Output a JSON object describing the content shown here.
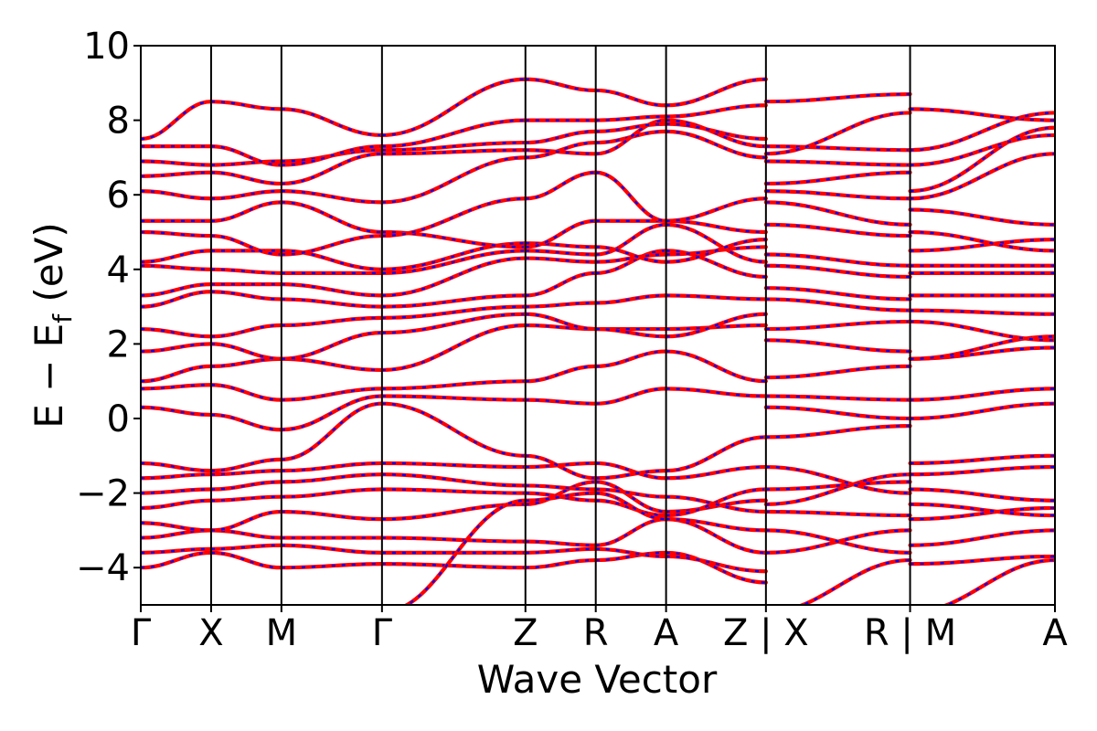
{
  "chart_data": {
    "type": "line",
    "title": "",
    "xlabel": "Wave Vector",
    "ylabel": {
      "prefix": "E − E",
      "subscript": "f",
      "suffix": " (eV)"
    },
    "ylim": [
      -5,
      10
    ],
    "yticks": [
      -4,
      -2,
      0,
      2,
      4,
      6,
      8,
      10
    ],
    "ytick_labels": [
      "−4",
      "−2",
      "0",
      "2",
      "4",
      "6",
      "8",
      "10"
    ],
    "xlim": [
      0,
      13
    ],
    "kpoint_positions": [
      0,
      1,
      2,
      3.43,
      5.47,
      6.47,
      7.47,
      8.89,
      10.94,
      13
    ],
    "kpoint_labels": [
      "Γ",
      "X",
      "M",
      "Γ",
      "Z",
      "R",
      "A",
      "Z | X",
      "R | M",
      "A"
    ],
    "grid": false,
    "series_style": [
      {
        "color": "#ff0000",
        "linestyle": "solid"
      },
      {
        "color": "#0000ff",
        "linestyle": "dotted"
      }
    ],
    "segments": [
      {
        "x_start": 0,
        "x_end": 1,
        "bands": [
          [
            -4.0,
            -3.6
          ],
          [
            -3.6,
            -3.5
          ],
          [
            -3.2,
            -3.0
          ],
          [
            -2.8,
            -3.0
          ],
          [
            -2.4,
            -2.2
          ],
          [
            -2.0,
            -1.9
          ],
          [
            -1.6,
            -1.5
          ],
          [
            -1.2,
            -1.4
          ],
          [
            0.3,
            0.1
          ],
          [
            0.8,
            0.9
          ],
          [
            1.0,
            1.4
          ],
          [
            1.8,
            2.0
          ],
          [
            2.4,
            2.2
          ],
          [
            3.0,
            3.4
          ],
          [
            3.3,
            3.6
          ],
          [
            4.1,
            4.0
          ],
          [
            4.2,
            4.5
          ],
          [
            5.3,
            5.3
          ],
          [
            5.0,
            4.9
          ],
          [
            6.1,
            5.9
          ],
          [
            6.5,
            6.6
          ],
          [
            6.9,
            6.8
          ],
          [
            7.3,
            7.3
          ],
          [
            7.5,
            8.5
          ]
        ]
      },
      {
        "x_start": 1,
        "x_end": 2,
        "bands": [
          [
            -3.6,
            -4.0
          ],
          [
            -3.5,
            -3.4
          ],
          [
            -3.0,
            -3.2
          ],
          [
            -3.0,
            -2.5
          ],
          [
            -2.2,
            -2.1
          ],
          [
            -1.9,
            -1.7
          ],
          [
            -1.5,
            -1.4
          ],
          [
            -1.4,
            -1.1
          ],
          [
            0.1,
            -0.3
          ],
          [
            0.9,
            0.5
          ],
          [
            1.4,
            1.6
          ],
          [
            2.0,
            1.6
          ],
          [
            2.2,
            2.5
          ],
          [
            3.4,
            3.2
          ],
          [
            3.6,
            3.6
          ],
          [
            4.0,
            3.9
          ],
          [
            4.5,
            4.5
          ],
          [
            5.3,
            5.8
          ],
          [
            4.9,
            4.4
          ],
          [
            5.9,
            6.1
          ],
          [
            6.6,
            6.3
          ],
          [
            6.8,
            6.9
          ],
          [
            7.3,
            6.8
          ],
          [
            8.5,
            8.3
          ]
        ]
      },
      {
        "x_start": 2,
        "x_end": 3.43,
        "bands": [
          [
            -4.0,
            -3.9
          ],
          [
            -3.4,
            -3.6
          ],
          [
            -3.2,
            -3.2
          ],
          [
            -2.5,
            -2.7
          ],
          [
            -2.1,
            -1.9
          ],
          [
            -1.7,
            -1.5
          ],
          [
            -1.4,
            -1.2
          ],
          [
            -1.1,
            0.4
          ],
          [
            -0.3,
            0.6
          ],
          [
            0.5,
            0.8
          ],
          [
            1.6,
            1.3
          ],
          [
            1.6,
            2.3
          ],
          [
            2.5,
            2.7
          ],
          [
            3.2,
            3.0
          ],
          [
            3.6,
            3.3
          ],
          [
            3.9,
            3.9
          ],
          [
            4.5,
            4.0
          ],
          [
            5.8,
            5.0
          ],
          [
            4.4,
            4.9
          ],
          [
            6.1,
            5.8
          ],
          [
            6.3,
            7.1
          ],
          [
            6.9,
            7.2
          ],
          [
            6.8,
            7.3
          ],
          [
            8.3,
            7.6
          ]
        ]
      },
      {
        "x_start": 3.43,
        "x_end": 5.47,
        "bands": [
          [
            -3.9,
            -4.0
          ],
          [
            -3.6,
            -3.6
          ],
          [
            -3.2,
            -3.3
          ],
          [
            -2.7,
            -2.3
          ],
          [
            -1.9,
            -2.0
          ],
          [
            -1.5,
            -1.8
          ],
          [
            -1.2,
            -1.3
          ],
          [
            0.4,
            -1.0
          ],
          [
            0.6,
            0.5
          ],
          [
            0.8,
            1.0
          ],
          [
            1.3,
            2.5
          ],
          [
            2.3,
            2.8
          ],
          [
            2.7,
            3.0
          ],
          [
            3.0,
            3.3
          ],
          [
            3.3,
            4.3
          ],
          [
            3.9,
            4.5
          ],
          [
            4.0,
            4.7
          ],
          [
            5.0,
            4.6
          ],
          [
            4.9,
            5.9
          ],
          [
            5.8,
            7.0
          ],
          [
            7.1,
            7.2
          ],
          [
            7.2,
            7.4
          ],
          [
            7.3,
            8.0
          ],
          [
            7.6,
            9.1
          ],
          [
            -5.2,
            -2.2
          ]
        ]
      },
      {
        "x_start": 5.47,
        "x_end": 6.47,
        "bands": [
          [
            -4.0,
            -3.8
          ],
          [
            -3.6,
            -3.5
          ],
          [
            -3.3,
            -3.4
          ],
          [
            -2.3,
            -1.7
          ],
          [
            -2.0,
            -2.2
          ],
          [
            -1.8,
            -1.9
          ],
          [
            -1.3,
            -1.2
          ],
          [
            -1.0,
            -1.6
          ],
          [
            0.5,
            0.4
          ],
          [
            1.0,
            1.4
          ],
          [
            2.5,
            2.4
          ],
          [
            2.8,
            2.4
          ],
          [
            3.0,
            3.1
          ],
          [
            3.3,
            3.9
          ],
          [
            4.3,
            4.2
          ],
          [
            4.5,
            4.4
          ],
          [
            4.7,
            4.6
          ],
          [
            4.6,
            5.3
          ],
          [
            5.9,
            6.6
          ],
          [
            7.0,
            7.4
          ],
          [
            7.2,
            7.1
          ],
          [
            7.4,
            7.7
          ],
          [
            8.0,
            8.0
          ],
          [
            9.1,
            8.8
          ],
          [
            -2.2,
            -2.0
          ]
        ]
      },
      {
        "x_start": 6.47,
        "x_end": 7.47,
        "bands": [
          [
            -3.8,
            -3.6
          ],
          [
            -3.5,
            -3.7
          ],
          [
            -3.4,
            -2.7
          ],
          [
            -1.7,
            -2.5
          ],
          [
            -2.2,
            -2.6
          ],
          [
            -1.9,
            -2.1
          ],
          [
            -1.2,
            -1.6
          ],
          [
            -1.6,
            -1.4
          ],
          [
            0.4,
            0.8
          ],
          [
            1.4,
            1.8
          ],
          [
            2.4,
            2.4
          ],
          [
            2.4,
            2.2
          ],
          [
            3.1,
            3.3
          ],
          [
            3.9,
            4.5
          ],
          [
            4.2,
            4.4
          ],
          [
            4.4,
            5.2
          ],
          [
            4.6,
            4.2
          ],
          [
            5.3,
            5.3
          ],
          [
            6.6,
            5.3
          ],
          [
            7.4,
            7.7
          ],
          [
            7.1,
            8.0
          ],
          [
            7.7,
            7.9
          ],
          [
            8.0,
            8.1
          ],
          [
            8.8,
            8.4
          ],
          [
            -2.0,
            -2.7
          ]
        ]
      },
      {
        "x_start": 7.47,
        "x_end": 8.89,
        "bands": [
          [
            -3.6,
            -4.4
          ],
          [
            -3.7,
            -4.1
          ],
          [
            -2.7,
            -3.6
          ],
          [
            -2.5,
            -2.2
          ],
          [
            -2.6,
            -1.9
          ],
          [
            -2.1,
            -2.5
          ],
          [
            -1.6,
            -1.3
          ],
          [
            -1.4,
            -0.5
          ],
          [
            0.8,
            0.6
          ],
          [
            1.8,
            1.0
          ],
          [
            2.4,
            2.5
          ],
          [
            2.2,
            2.8
          ],
          [
            3.3,
            3.2
          ],
          [
            4.5,
            3.8
          ],
          [
            4.4,
            4.6
          ],
          [
            5.2,
            4.2
          ],
          [
            4.2,
            4.8
          ],
          [
            5.3,
            5.0
          ],
          [
            5.3,
            5.9
          ],
          [
            7.7,
            7.0
          ],
          [
            8.0,
            7.3
          ],
          [
            7.9,
            7.5
          ],
          [
            8.1,
            8.4
          ],
          [
            8.4,
            9.1
          ],
          [
            -2.7,
            -3.0
          ]
        ]
      },
      {
        "x_start": 8.89,
        "x_end": 10.94,
        "bands": [
          [
            -5.2,
            -3.8
          ],
          [
            -3.6,
            -3.0
          ],
          [
            -3.0,
            -3.6
          ],
          [
            -2.5,
            -2.6
          ],
          [
            -2.3,
            -1.5
          ],
          [
            -1.9,
            -1.7
          ],
          [
            -1.3,
            -2.0
          ],
          [
            -0.5,
            -0.2
          ],
          [
            0.3,
            0.0
          ],
          [
            0.6,
            0.5
          ],
          [
            1.1,
            1.4
          ],
          [
            2.1,
            1.8
          ],
          [
            2.4,
            2.6
          ],
          [
            3.2,
            2.9
          ],
          [
            3.5,
            3.2
          ],
          [
            4.1,
            3.8
          ],
          [
            4.4,
            4.1
          ],
          [
            5.2,
            4.9
          ],
          [
            5.8,
            5.2
          ],
          [
            6.1,
            5.9
          ],
          [
            6.3,
            6.6
          ],
          [
            6.9,
            6.8
          ],
          [
            7.3,
            7.2
          ],
          [
            8.5,
            8.7
          ],
          [
            7.1,
            8.2
          ]
        ]
      },
      {
        "x_start": 10.94,
        "x_end": 13,
        "bands": [
          [
            -5.2,
            -3.8
          ],
          [
            -3.9,
            -3.7
          ],
          [
            -3.4,
            -3.0
          ],
          [
            -2.7,
            -2.4
          ],
          [
            -2.3,
            -2.6
          ],
          [
            -1.9,
            -2.2
          ],
          [
            -1.5,
            -1.3
          ],
          [
            -1.2,
            -1.0
          ],
          [
            0.0,
            0.4
          ],
          [
            0.5,
            0.8
          ],
          [
            1.6,
            1.9
          ],
          [
            1.6,
            2.2
          ],
          [
            2.6,
            2.1
          ],
          [
            2.9,
            2.8
          ],
          [
            3.3,
            3.3
          ],
          [
            3.9,
            3.9
          ],
          [
            4.1,
            4.1
          ],
          [
            4.5,
            4.8
          ],
          [
            5.0,
            4.5
          ],
          [
            5.6,
            5.2
          ],
          [
            5.9,
            7.1
          ],
          [
            6.1,
            7.8
          ],
          [
            6.8,
            7.6
          ],
          [
            8.3,
            8.0
          ],
          [
            7.2,
            8.2
          ]
        ]
      }
    ]
  }
}
